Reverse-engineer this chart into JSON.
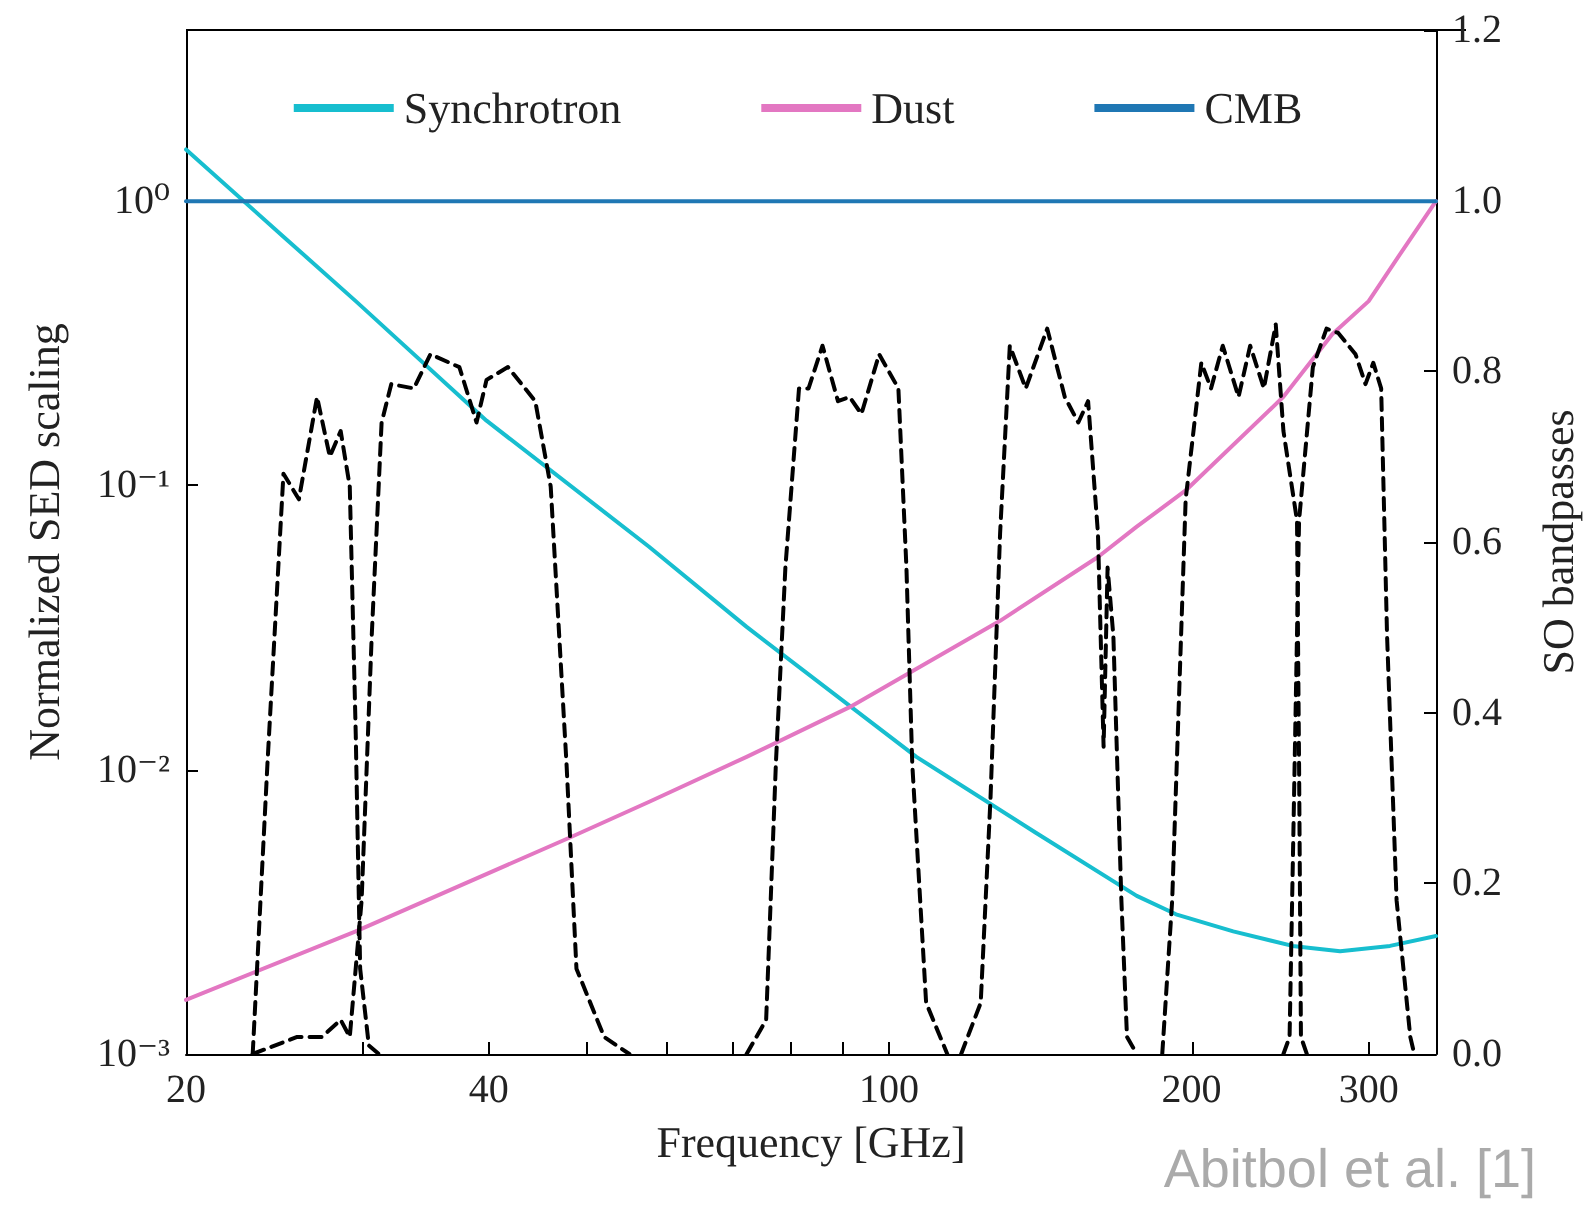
{
  "chart_data": {
    "type": "line",
    "xlabel": "Frequency [GHz]",
    "ylabel": "Normalized SED scaling",
    "y2label": "SO bandpasses",
    "log": "xy",
    "grid": false,
    "legend": "top",
    "marker": "none",
    "line_style": "solid",
    "xlim": [
      20,
      350
    ],
    "xticks": [
      20,
      {
        "value": 30,
        "label": null
      },
      40,
      {
        "value": 50,
        "label": null
      },
      {
        "value": 60,
        "label": null
      },
      {
        "value": 70,
        "label": null
      },
      {
        "value": 80,
        "label": null
      },
      {
        "value": 90,
        "label": null
      },
      100,
      200,
      300
    ],
    "ylim": [
      0.001,
      4
    ],
    "yticks": [
      {
        "value": 0.001,
        "label": "10⁻³"
      },
      {
        "value": 0.01,
        "label": "10⁻²"
      },
      {
        "value": 0.1,
        "label": "10⁻¹"
      },
      {
        "value": 1,
        "label": "10⁰"
      }
    ],
    "y2lim": [
      0,
      1.2
    ],
    "y2ticks": [
      {
        "value": 0,
        "label": "0.0"
      },
      {
        "value": 0.2,
        "label": "0.2"
      },
      {
        "value": 0.4,
        "label": "0.4"
      },
      {
        "value": 0.6,
        "label": "0.6"
      },
      {
        "value": 0.8,
        "label": "0.8"
      },
      {
        "value": 1,
        "label": "1.0"
      },
      {
        "value": 1.2,
        "label": "1.2"
      }
    ],
    "annotations": [
      "Abitbol et al. [1]"
    ],
    "series": [
      {
        "name": "Synchrotron",
        "color": "#17becf",
        "x": [
          20,
          25,
          29.5,
          39.8,
          57.7,
          72.2,
          106.5,
          140,
          176.4,
          193,
          220,
          252,
          281,
          315,
          350
        ],
        "values": [
          1.52,
          0.75,
          0.445,
          0.169,
          0.061,
          0.0318,
          0.0111,
          0.006,
          0.0036,
          0.0031,
          0.0027,
          0.0024,
          0.0023,
          0.0024,
          0.0026
        ]
      },
      {
        "name": "Dust",
        "color": "#e377c2",
        "x": [
          20,
          29.5,
          48.3,
          57.7,
          72.2,
          91.4,
          129,
          161.4,
          176.4,
          197.3,
          246.8,
          276,
          300,
          325,
          350
        ],
        "values": [
          0.00155,
          0.0027,
          0.0058,
          0.0077,
          0.0111,
          0.0166,
          0.0334,
          0.056,
          0.0716,
          0.096,
          0.205,
          0.34,
          0.445,
          0.68,
          1.0
        ]
      },
      {
        "name": "CMB",
        "color": "#1f77b4",
        "x": [
          20,
          350
        ],
        "values": [
          1,
          1
        ]
      },
      {
        "color": "#000000",
        "axis": "y2",
        "line_style": "dashed",
        "x": [
          23.3,
          24.1,
          25.0,
          25.9,
          27.0,
          27.8,
          28.5,
          29.1,
          29.5,
          29.8,
          30.4,
          31.1
        ],
        "values": [
          0,
          0.34,
          0.68,
          0.65,
          0.77,
          0.7,
          0.73,
          0.665,
          0.375,
          0.1,
          0.01,
          0
        ]
      },
      {
        "color": "#000000",
        "axis": "y2",
        "line_style": "dashed",
        "x": [
          23.3,
          25.8,
          27.3,
          28.5,
          29.1,
          29.9,
          30.6,
          31.3,
          32.0,
          33.7,
          35.0,
          37.4,
          38.9,
          39.8,
          41.8,
          44.5,
          46.1,
          47.8,
          48.9,
          52.1,
          55.2
        ],
        "values": [
          0,
          0.02,
          0.02,
          0.04,
          0.02,
          0.18,
          0.49,
          0.74,
          0.785,
          0.78,
          0.82,
          0.805,
          0.74,
          0.79,
          0.805,
          0.765,
          0.665,
          0.34,
          0.1,
          0.02,
          0
        ]
      },
      {
        "color": "#000000",
        "axis": "y2",
        "line_style": "dashed",
        "x": [
          72.2,
          75.5,
          77.2,
          78.9,
          81.4,
          83.2,
          85.9,
          89.0,
          91.4,
          93.9,
          97.8,
          102.2,
          104.1,
          105.5,
          108.9,
          114.3
        ],
        "values": [
          0,
          0.04,
          0.34,
          0.57,
          0.78,
          0.78,
          0.83,
          0.765,
          0.77,
          0.75,
          0.82,
          0.78,
          0.57,
          0.34,
          0.06,
          0
        ]
      },
      {
        "color": "#000000",
        "axis": "y2",
        "line_style": "dashed",
        "x": [
          118.0,
          123.4,
          126.2,
          129.0,
          131.9,
          136.8,
          143.7,
          149.6,
          154.3,
          157.8,
          161.4,
          163.5,
          165.0,
          167.2,
          170.3,
          172.5,
          176.4
        ],
        "values": [
          0,
          0.06,
          0.3,
          0.61,
          0.83,
          0.78,
          0.85,
          0.77,
          0.74,
          0.765,
          0.61,
          0.36,
          0.57,
          0.49,
          0.18,
          0.02,
          0
        ]
      },
      {
        "color": "#000000",
        "axis": "y2",
        "line_style": "dashed",
        "x": [
          187.0,
          191.3,
          197.3,
          204.5,
          209.1,
          214.8,
          222.7,
          228.7,
          236.0,
          242.5,
          246.8,
          254.6,
          255.8,
          256.9,
          260.4
        ],
        "values": [
          0,
          0.18,
          0.65,
          0.81,
          0.78,
          0.83,
          0.77,
          0.83,
          0.78,
          0.855,
          0.73,
          0.625,
          0.34,
          0.02,
          0
        ]
      },
      {
        "color": "#000000",
        "axis": "y2",
        "line_style": "dashed",
        "x": [
          246.8,
          250.3,
          252.5,
          255.8,
          264.0,
          272.4,
          279.8,
          291.1,
          297.8,
          303.2,
          308.7,
          312.9,
          319.8,
          330.0,
          333.0
        ],
        "values": [
          0,
          0.02,
          0.26,
          0.625,
          0.805,
          0.85,
          0.845,
          0.82,
          0.785,
          0.81,
          0.78,
          0.49,
          0.18,
          0.02,
          0
        ]
      }
    ]
  }
}
